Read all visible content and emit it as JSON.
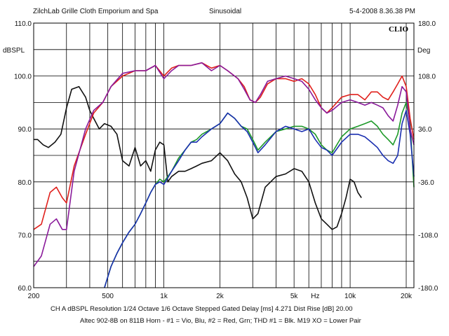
{
  "header": {
    "left": "ZilchLab Grille Cloth Emporium and Spa",
    "center": "Sinusoidal",
    "right": "5-4-2008 8.36.38 PM",
    "logo": "CLIO"
  },
  "footer": {
    "line1": "CH A   dBSPL   Resolution 1/24 Octave   1/6 Octave   Stepped   Gated   Delay [ms] 4.271   Dist Rise [dB] 20.00",
    "line2": "Altec 902-8B on 811B Horn - #1 = Vio, Blu, #2 = Red, Grn; THD #1 = Blk. M19 XO = Lower Pair"
  },
  "colors": {
    "red": "#e0201c",
    "violet": "#8a1a9a",
    "blue": "#1a2fb0",
    "green": "#1e9a2a",
    "black": "#111111",
    "grid": "#000000"
  },
  "chart_data": {
    "type": "line",
    "xscale": "log",
    "xlim": [
      200,
      22000
    ],
    "x_ticks": [
      200,
      500,
      1000,
      2000,
      5000,
      10000,
      20000
    ],
    "x_tick_labels": [
      "200",
      "500",
      "1k",
      "2k",
      "5k",
      "10k",
      "20k"
    ],
    "x_extra_label": "Hz",
    "ylim": [
      60,
      110
    ],
    "y_ticks": [
      60,
      70,
      80,
      90,
      100,
      110
    ],
    "y_tick_labels": [
      "60.0",
      "70.0",
      "80.0",
      "90.0",
      "100.0",
      "110.0"
    ],
    "ylabel": "dBSPL",
    "y2lim": [
      -180,
      180
    ],
    "y2_tick_labels": [
      "180.0",
      "108.0",
      "36.0",
      "-36.0",
      "-108.0",
      "-180.0"
    ],
    "y2label": "Deg",
    "series": [
      {
        "color": "red",
        "x": [
          200,
          220,
          245,
          265,
          285,
          300,
          330,
          380,
          420,
          470,
          520,
          600,
          700,
          800,
          900,
          1000,
          1100,
          1200,
          1400,
          1600,
          1800,
          2000,
          2200,
          2500,
          2700,
          2900,
          3100,
          3300,
          3600,
          4000,
          4500,
          5000,
          5500,
          6000,
          6500,
          7000,
          7500,
          8000,
          9000,
          10000,
          11000,
          12000,
          13000,
          14000,
          15000,
          16000,
          17000,
          18000,
          19000,
          20000,
          21000,
          22000
        ],
        "y": [
          71,
          72,
          78,
          79,
          77,
          76,
          83,
          89,
          93,
          95,
          98,
          100,
          101,
          101,
          102,
          100,
          101.5,
          102,
          102,
          102.5,
          101.5,
          102,
          101,
          99.5,
          98,
          95.5,
          95,
          96,
          98.5,
          99.5,
          99.5,
          99,
          99.5,
          98.5,
          96.5,
          94,
          93,
          94,
          96,
          96.5,
          96.5,
          95.5,
          97,
          97,
          96,
          95.5,
          97,
          98.5,
          100,
          98,
          92,
          88
        ]
      },
      {
        "color": "violet",
        "x": [
          200,
          220,
          245,
          265,
          285,
          300,
          330,
          380,
          420,
          470,
          520,
          600,
          700,
          800,
          900,
          1000,
          1100,
          1200,
          1400,
          1600,
          1800,
          2000,
          2200,
          2500,
          2700,
          2900,
          3100,
          3300,
          3600,
          4000,
          4500,
          5000,
          5500,
          6000,
          6500,
          7000,
          7500,
          8000,
          9000,
          10000,
          11000,
          12000,
          13000,
          14000,
          15000,
          16000,
          17000,
          18000,
          19000,
          20000,
          21000,
          22000
        ],
        "y": [
          64,
          66,
          72,
          73,
          71,
          71,
          82,
          90,
          93.5,
          95,
          98,
          100.5,
          101,
          101,
          102,
          99.5,
          101,
          102,
          102,
          102.5,
          101,
          102,
          101,
          99.5,
          97.5,
          95.5,
          95,
          96.5,
          99,
          99.5,
          100,
          99.5,
          99,
          97.5,
          95.5,
          94,
          93,
          93.5,
          95,
          95.5,
          95,
          94.5,
          95,
          94.5,
          94,
          92.5,
          91.5,
          94.5,
          98,
          97,
          90,
          87
        ]
      },
      {
        "color": "blue",
        "x": [
          480,
          520,
          560,
          600,
          650,
          700,
          750,
          800,
          850,
          900,
          950,
          1000,
          1100,
          1200,
          1300,
          1400,
          1500,
          1600,
          1800,
          2000,
          2200,
          2400,
          2600,
          2800,
          3000,
          3200,
          3500,
          4000,
          4500,
          5000,
          5500,
          6000,
          6500,
          7000,
          7500,
          8000,
          9000,
          10000,
          11000,
          12000,
          13000,
          14000,
          15000,
          16000,
          17000,
          18000,
          19000,
          20000,
          21000,
          22000
        ],
        "y": [
          60,
          64,
          66.5,
          68.5,
          70.5,
          72,
          74,
          76,
          78,
          79.5,
          80,
          79.5,
          82,
          84,
          86,
          87.5,
          87.5,
          88.5,
          90,
          91,
          93,
          92,
          90.5,
          89.5,
          87.5,
          85.5,
          87,
          89.5,
          90.5,
          90,
          89.5,
          90,
          88,
          86.5,
          86,
          85,
          87.5,
          89,
          89,
          88.5,
          87.5,
          86.5,
          85,
          84,
          83.5,
          85,
          91,
          93.5,
          89,
          81
        ]
      },
      {
        "color": "green",
        "x": [
          480,
          520,
          560,
          600,
          650,
          700,
          750,
          800,
          850,
          900,
          950,
          1000,
          1100,
          1200,
          1300,
          1400,
          1500,
          1600,
          1800,
          2000,
          2200,
          2400,
          2600,
          2800,
          3000,
          3200,
          3500,
          4000,
          4500,
          5000,
          5500,
          6000,
          6500,
          7000,
          7500,
          8000,
          9000,
          10000,
          11000,
          12000,
          13000,
          14000,
          15000,
          16000,
          17000,
          18000,
          19000,
          20000,
          21000,
          22000
        ],
        "y": [
          60,
          64,
          66.5,
          68.5,
          70.5,
          72,
          74,
          76,
          78,
          79.5,
          80.5,
          80,
          82,
          84.5,
          86,
          87.5,
          88,
          89,
          90,
          91,
          93,
          92,
          90.5,
          90,
          88,
          86,
          87.5,
          89.5,
          90,
          90.5,
          90.5,
          90,
          89,
          87,
          86,
          85.5,
          88.5,
          90,
          90.5,
          91,
          91.5,
          90.5,
          89,
          88,
          87,
          89,
          93,
          95,
          91,
          79
        ]
      },
      {
        "color": "black",
        "x": [
          200,
          210,
          225,
          240,
          260,
          280,
          300,
          320,
          350,
          380,
          400,
          420,
          450,
          480,
          520,
          560,
          600,
          650,
          700,
          750,
          800,
          850,
          900,
          950,
          1000,
          1050,
          1100,
          1200,
          1300,
          1400,
          1500,
          1600,
          1800,
          2000,
          2200,
          2400,
          2600,
          2800,
          3000,
          3200,
          3500,
          4000,
          4500,
          5000,
          5500,
          6000,
          6500,
          7000,
          7500,
          8000,
          8500,
          9000,
          9500,
          10000,
          10500,
          11000,
          11500
        ],
        "y": [
          88,
          88,
          87,
          86.5,
          87.5,
          89,
          94,
          97.5,
          98,
          96,
          93.5,
          92,
          90,
          91,
          90.5,
          89,
          84,
          83,
          86.5,
          83,
          84,
          82,
          86,
          87.5,
          87,
          80,
          81,
          82,
          82,
          82.5,
          83,
          83.5,
          84,
          85.5,
          84,
          81.5,
          80,
          77,
          73,
          74,
          79,
          81,
          81.5,
          82.5,
          82,
          80,
          76,
          73,
          72,
          71,
          71.5,
          74,
          77,
          80.5,
          80,
          78,
          77
        ]
      }
    ]
  }
}
